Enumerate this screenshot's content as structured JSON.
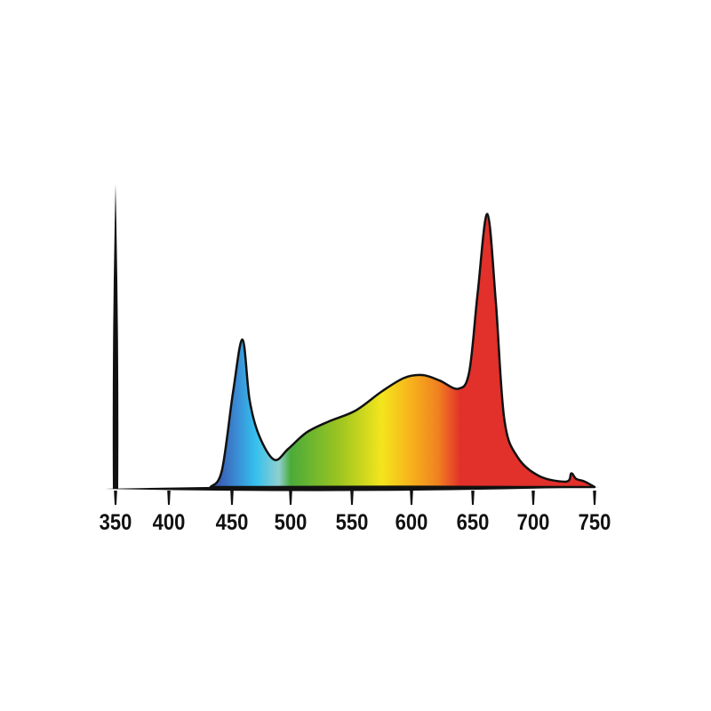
{
  "chart_data": {
    "type": "area",
    "title": "",
    "xlabel": "",
    "ylabel": "",
    "xlim": [
      350,
      750
    ],
    "ylim": [
      0,
      1.11
    ],
    "grid": false,
    "legend": "none",
    "x_ticks": [
      "350",
      "400",
      "450",
      "500",
      "550",
      "600",
      "650",
      "700",
      "750"
    ],
    "series": [
      {
        "x": [
          433,
          442,
          451,
          459,
          465,
          473,
          486,
          498,
          513,
          531,
          553,
          575,
          594,
          609,
          623,
          638,
          647,
          654,
          662,
          669,
          676,
          687,
          705,
          727,
          731,
          735,
          742,
          750
        ],
        "y": [
          0,
          0.06,
          0.35,
          0.54,
          0.32,
          0.19,
          0.1,
          0.14,
          0.2,
          0.24,
          0.28,
          0.35,
          0.4,
          0.41,
          0.39,
          0.36,
          0.42,
          0.71,
          1.0,
          0.68,
          0.25,
          0.11,
          0.04,
          0.02,
          0.05,
          0.03,
          0.02,
          0
        ]
      }
    ],
    "fill_gradient": [
      {
        "nm": 435,
        "color": "#3b4fa8"
      },
      {
        "nm": 455,
        "color": "#3a8fd6"
      },
      {
        "nm": 470,
        "color": "#35c0ee"
      },
      {
        "nm": 490,
        "color": "#8fcfd0"
      },
      {
        "nm": 500,
        "color": "#4aab3a"
      },
      {
        "nm": 540,
        "color": "#9dc520"
      },
      {
        "nm": 575,
        "color": "#f3e51d"
      },
      {
        "nm": 600,
        "color": "#f7b11c"
      },
      {
        "nm": 622,
        "color": "#f08020"
      },
      {
        "nm": 640,
        "color": "#e2302a"
      },
      {
        "nm": 750,
        "color": "#e2302a"
      }
    ],
    "outline_color": "#111111"
  }
}
